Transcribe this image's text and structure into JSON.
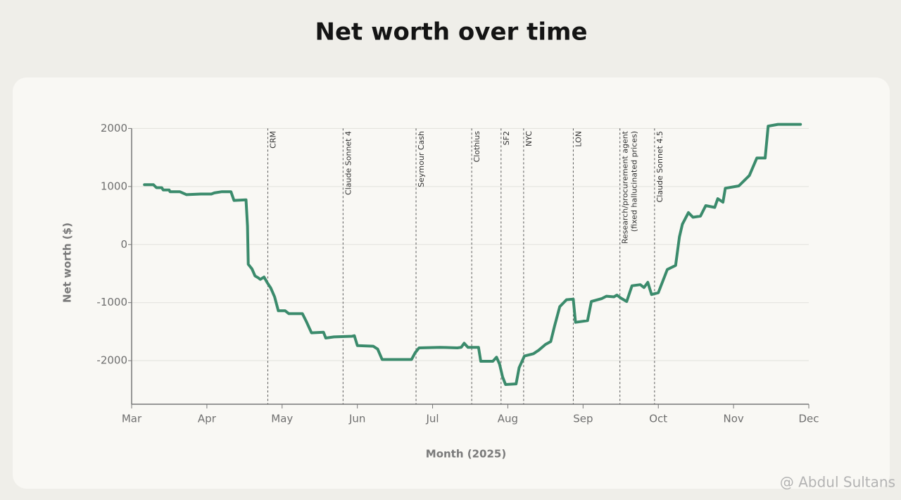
{
  "chart_data": {
    "type": "line",
    "title": "Net worth over time",
    "y_label": "Net worth ($)",
    "x_label": "Month (2025)",
    "watermark": "@ Abdul Sultans",
    "color": "#3b8b6c",
    "grid": true,
    "xlim": [
      3,
      12
    ],
    "ylim": [
      -2750,
      2150
    ],
    "xticks": [
      {
        "value": 3,
        "label": "Mar"
      },
      {
        "value": 4,
        "label": "Apr"
      },
      {
        "value": 5,
        "label": "May"
      },
      {
        "value": 6,
        "label": "Jun"
      },
      {
        "value": 7,
        "label": "Jul"
      },
      {
        "value": 8,
        "label": "Aug"
      },
      {
        "value": 9,
        "label": "Sep"
      },
      {
        "value": 10,
        "label": "Oct"
      },
      {
        "value": 11,
        "label": "Nov"
      },
      {
        "value": 12,
        "label": "Dec"
      }
    ],
    "yticks": [
      -2000,
      -1000,
      0,
      1000,
      2000
    ],
    "annotations": [
      {
        "x": 4.81,
        "label": [
          "CRM"
        ]
      },
      {
        "x": 5.81,
        "label": [
          "Claude Sonnet 4"
        ]
      },
      {
        "x": 6.78,
        "label": [
          "Seymour Cash"
        ]
      },
      {
        "x": 7.52,
        "label": [
          "Clothius"
        ]
      },
      {
        "x": 7.91,
        "label": [
          "SF2"
        ]
      },
      {
        "x": 8.21,
        "label": [
          "NYC"
        ]
      },
      {
        "x": 8.87,
        "label": [
          "LON"
        ]
      },
      {
        "x": 9.49,
        "label": [
          "Research/procurement agent",
          "(fixed hallucinated prices)"
        ]
      },
      {
        "x": 9.95,
        "label": [
          "Claude Sonnet 4.5"
        ]
      }
    ],
    "x": [
      3.17,
      3.29,
      3.33,
      3.4,
      3.42,
      3.5,
      3.51,
      3.64,
      3.73,
      3.92,
      4.06,
      4.1,
      4.2,
      4.32,
      4.36,
      4.52,
      4.54,
      4.55,
      4.6,
      4.64,
      4.68,
      4.71,
      4.76,
      4.8,
      4.85,
      4.9,
      4.95,
      5.04,
      5.09,
      5.27,
      5.32,
      5.39,
      5.55,
      5.58,
      5.69,
      5.93,
      5.96,
      6.0,
      6.21,
      6.27,
      6.33,
      6.72,
      6.77,
      6.82,
      7.1,
      7.33,
      7.38,
      7.42,
      7.47,
      7.61,
      7.64,
      7.8,
      7.85,
      7.89,
      7.93,
      7.97,
      8.11,
      8.15,
      8.22,
      8.34,
      8.41,
      8.5,
      8.57,
      8.62,
      8.69,
      8.78,
      8.87,
      8.9,
      9.06,
      9.11,
      9.25,
      9.31,
      9.41,
      9.45,
      9.5,
      9.58,
      9.65,
      9.76,
      9.81,
      9.86,
      9.91,
      10.0,
      10.12,
      10.23,
      10.28,
      10.32,
      10.4,
      10.46,
      10.56,
      10.63,
      10.75,
      10.79,
      10.86,
      10.89,
      11.07,
      11.21,
      11.31,
      11.42,
      11.46,
      11.59,
      11.89
    ],
    "values": [
      1030,
      1030,
      980,
      980,
      940,
      940,
      910,
      910,
      860,
      870,
      870,
      890,
      910,
      910,
      760,
      770,
      320,
      -340,
      -420,
      -540,
      -570,
      -600,
      -560,
      -650,
      -750,
      -900,
      -1140,
      -1140,
      -1190,
      -1190,
      -1320,
      -1520,
      -1510,
      -1610,
      -1590,
      -1580,
      -1570,
      -1740,
      -1750,
      -1800,
      -1980,
      -1980,
      -1860,
      -1780,
      -1770,
      -1780,
      -1770,
      -1700,
      -1770,
      -1770,
      -2010,
      -2010,
      -1940,
      -2060,
      -2280,
      -2410,
      -2400,
      -2120,
      -1920,
      -1880,
      -1820,
      -1720,
      -1670,
      -1410,
      -1070,
      -950,
      -940,
      -1340,
      -1310,
      -980,
      -930,
      -890,
      -900,
      -870,
      -920,
      -980,
      -710,
      -690,
      -740,
      -650,
      -860,
      -830,
      -430,
      -360,
      130,
      350,
      550,
      470,
      490,
      670,
      640,
      790,
      730,
      970,
      1010,
      1190,
      1490,
      1490,
      2040,
      2070,
      2070
    ]
  }
}
